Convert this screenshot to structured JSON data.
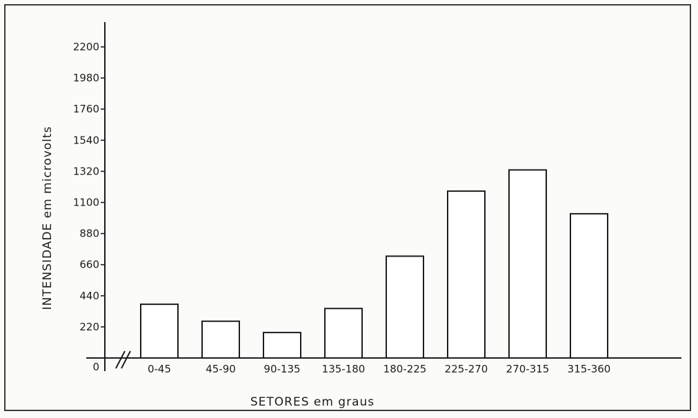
{
  "chart_data": {
    "type": "bar",
    "title": "",
    "xlabel": "SETORES em graus",
    "ylabel": "INTENSIDADE em microvolts",
    "categories": [
      "0-45",
      "45-90",
      "90-135",
      "135-180",
      "180-225",
      "225-270",
      "270-315",
      "315-360"
    ],
    "values": [
      380,
      260,
      180,
      350,
      720,
      1180,
      1330,
      1020
    ],
    "yticks": [
      0,
      220,
      440,
      660,
      880,
      1100,
      1320,
      1540,
      1760,
      1980,
      2200
    ],
    "ytick_labels": [
      "0",
      "220",
      "440",
      "660",
      "880",
      "1100",
      "1320",
      "1540",
      "1760",
      "1980",
      "2200"
    ],
    "ylim": [
      0,
      2350
    ],
    "grid": false,
    "legend": "none",
    "axis_break": true,
    "colors": {
      "ink": "#1c1c1c",
      "bar_fill": "#ffffff",
      "background": "#fbfbf9"
    }
  }
}
